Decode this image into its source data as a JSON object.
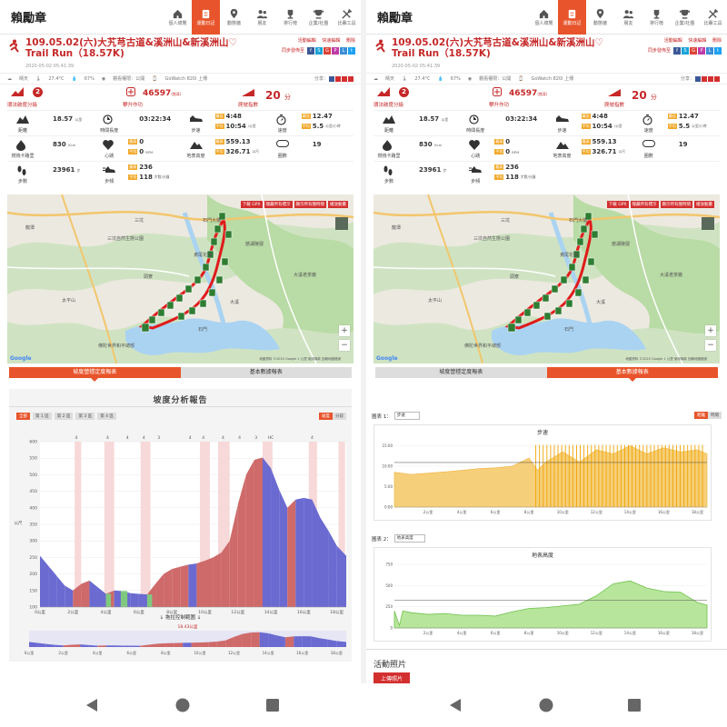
{
  "app": {
    "brand": "賴勵章"
  },
  "nav": [
    {
      "label": "個人總覽",
      "icon": "home-icon"
    },
    {
      "label": "運動日記",
      "icon": "diary-icon"
    },
    {
      "label": "動態牆",
      "icon": "pin-icon"
    },
    {
      "label": "朋友",
      "icon": "friends-icon"
    },
    {
      "label": "排行榜",
      "icon": "trophy-icon"
    },
    {
      "label": "企業/社團",
      "icon": "cup-icon"
    },
    {
      "label": "比賽工具",
      "icon": "tools-icon"
    }
  ],
  "activity": {
    "title": "109.05.02(六)大艽芎古道&溪洲山&新溪洲山♡ Trail Run（18.57K)",
    "datetime": "2020-05-02 05:41:39",
    "actions": {
      "edit": "活動編輯",
      "quick_edit": "快速編輯",
      "delete": "刪除"
    },
    "sync_label": "同步發佈至",
    "weather": "晴天",
    "temperature": "27.4°C",
    "humidity": "67%",
    "privacy": "觀看權限：公開",
    "device": "GoWatch 820i 上傳",
    "share_label": "分享："
  },
  "highlights": {
    "difficulty": {
      "label": "環法破度分級",
      "value": "2"
    },
    "effort": {
      "label": "攀升作功",
      "value": "46597",
      "unit": "(焦耳)"
    },
    "score": {
      "label": "爬坡指數",
      "value": "20",
      "unit": "分"
    }
  },
  "stats": {
    "distance": {
      "label": "距離",
      "value": "18.57",
      "unit": "公里"
    },
    "time": {
      "label": "時間長度",
      "value": "03:22:34"
    },
    "pace": {
      "label": "步速",
      "best_tag": "最佳",
      "best": "4:48",
      "avg_tag": "平均",
      "avg": "10:54",
      "unit": "/公里"
    },
    "speed": {
      "label": "速度",
      "best_tag": "最佳",
      "best": "12.47",
      "avg_tag": "平均",
      "avg": "5.5",
      "unit": "公里/小時"
    },
    "calories": {
      "label": "燃燒卡路里",
      "value": "830",
      "unit": "Kcal"
    },
    "heart": {
      "label": "心跳",
      "max_tag": "最高",
      "max": "0",
      "avg_tag": "平均",
      "avg": "0",
      "unit": "BPM"
    },
    "elevation": {
      "label": "地表高度",
      "max_tag": "最高",
      "max": "559.13",
      "avg_tag": "平均",
      "avg": "326.71",
      "unit": "公尺"
    },
    "laps": {
      "label": "圈數",
      "value": "19"
    },
    "steps": {
      "label": "步數",
      "value": "23961",
      "unit": "步"
    },
    "cadence": {
      "label": "步頻",
      "max_tag": "最高",
      "max": "236",
      "avg_tag": "平均",
      "avg": "118",
      "unit": "步數/分鐘"
    }
  },
  "map": {
    "buttons": [
      "下載 GPX",
      "隱藏所有標示",
      "顯示所有圈時間",
      "播放動畫"
    ],
    "labels": [
      "三坑自然生態公園",
      "石門大壩",
      "鳶尾花海",
      "慈湖陵寢",
      "大溪老茶廠",
      "龍潭",
      "太平山",
      "三坑",
      "頭寮",
      "大溪",
      "石門",
      "佛陀世界和平總部"
    ],
    "copyright": "地圖資料 ©2020 Google  1 公里  使用條款 回報地圖錯誤",
    "google": "Google",
    "zoom_in": "+",
    "zoom_out": "−"
  },
  "tabs": [
    "坡度營穩定度報表",
    "基本數據報表"
  ],
  "slope_report": {
    "title": "坡度分析報告",
    "segments": [
      "全部",
      "第 1 區",
      "第 2 區",
      "第 3 區",
      "第 4 區"
    ],
    "views": [
      "坡度",
      "分段"
    ],
    "range_hint": "↓ 拖拉控制範圍 ↓",
    "range_value": "18.43公里",
    "markers": [
      "4",
      "4",
      "4",
      "4",
      "3",
      "4",
      "4",
      "4",
      "4",
      "3",
      "HC",
      "4"
    ]
  },
  "basic_report": {
    "chart1_label": "圖表 1：",
    "chart1_select": "步速",
    "chart1_title": "步速",
    "toggle": [
      "距離",
      "時間"
    ],
    "chart2_label": "圖表 2：",
    "chart2_select": "地表高度",
    "chart2_title": "地表高度",
    "photos_title": "活動照片",
    "upload": "上傳照片"
  },
  "chart_data": [
    {
      "type": "area",
      "title": "坡度分析報告",
      "ylabel": "公尺",
      "x_ticks": [
        "0公里",
        "2公里",
        "4公里",
        "6公里",
        "8公里",
        "10公里",
        "12公里",
        "14公里",
        "16公里",
        "18公里"
      ],
      "y_ticks": [
        100,
        150,
        200,
        250,
        300,
        350,
        400,
        450,
        500,
        550,
        600
      ],
      "ylim": [
        100,
        600
      ],
      "xlim": [
        0,
        18.57
      ],
      "x": [
        0,
        0.5,
        1,
        1.5,
        2,
        2.5,
        3,
        3.5,
        4,
        4.5,
        5,
        5.5,
        6,
        6.5,
        7,
        7.5,
        8,
        8.5,
        9,
        9.5,
        10,
        10.5,
        11,
        11.5,
        12,
        12.5,
        13,
        13.5,
        14,
        14.5,
        15,
        15.5,
        16,
        16.5,
        17,
        17.5,
        18,
        18.57
      ],
      "y": [
        255,
        225,
        195,
        165,
        150,
        170,
        180,
        160,
        140,
        150,
        148,
        142,
        140,
        138,
        170,
        200,
        215,
        222,
        228,
        232,
        240,
        250,
        265,
        300,
        410,
        500,
        545,
        552,
        520,
        455,
        400,
        425,
        430,
        425,
        370,
        330,
        285,
        255
      ]
    },
    {
      "type": "area",
      "title": "步速",
      "y_ticks": [
        "0:00",
        "5:00",
        "10:00",
        "15:00"
      ],
      "x_ticks": [
        "2公里",
        "4公里",
        "6公里",
        "8公里",
        "10公里",
        "12公里",
        "14公里",
        "16公里",
        "18公里"
      ],
      "xlim": [
        0,
        18.57
      ],
      "x": [
        0,
        1,
        2,
        3,
        4,
        5,
        6,
        7,
        8,
        8.5,
        9,
        10,
        11,
        12,
        13,
        14,
        15,
        16,
        17,
        18,
        18.57
      ],
      "y": [
        8.5,
        8,
        8.3,
        8.6,
        9,
        9.4,
        9.6,
        10,
        12,
        9,
        11,
        13.5,
        11,
        14,
        13,
        15,
        13,
        14.5,
        13.5,
        14,
        13
      ]
    },
    {
      "type": "area",
      "title": "地表高度",
      "y_ticks": [
        0,
        250,
        500,
        750
      ],
      "x_ticks": [
        "2公里",
        "4公里",
        "6公里",
        "8公里",
        "10公里",
        "12公里",
        "14公里",
        "16公里",
        "18公里"
      ],
      "ylim": [
        0,
        750
      ],
      "xlim": [
        0,
        18.57
      ],
      "x": [
        0,
        0.3,
        0.5,
        1,
        2,
        3,
        4,
        5,
        6,
        7,
        8,
        9,
        10,
        11,
        12,
        13,
        14,
        15,
        16,
        17,
        18,
        18.57
      ],
      "y": [
        200,
        30,
        200,
        180,
        160,
        170,
        150,
        150,
        140,
        190,
        230,
        240,
        260,
        280,
        380,
        520,
        555,
        470,
        430,
        420,
        300,
        270
      ]
    }
  ],
  "colors": {
    "accent": "#e8542b",
    "title_red": "#c62828",
    "tag_orange": "#f1a92b",
    "climb_fill": "#cf6a6a",
    "flat_fill": "#6a6ad1",
    "pace_fill": "#f0b13a",
    "elev_fill": "#8bd36a"
  }
}
